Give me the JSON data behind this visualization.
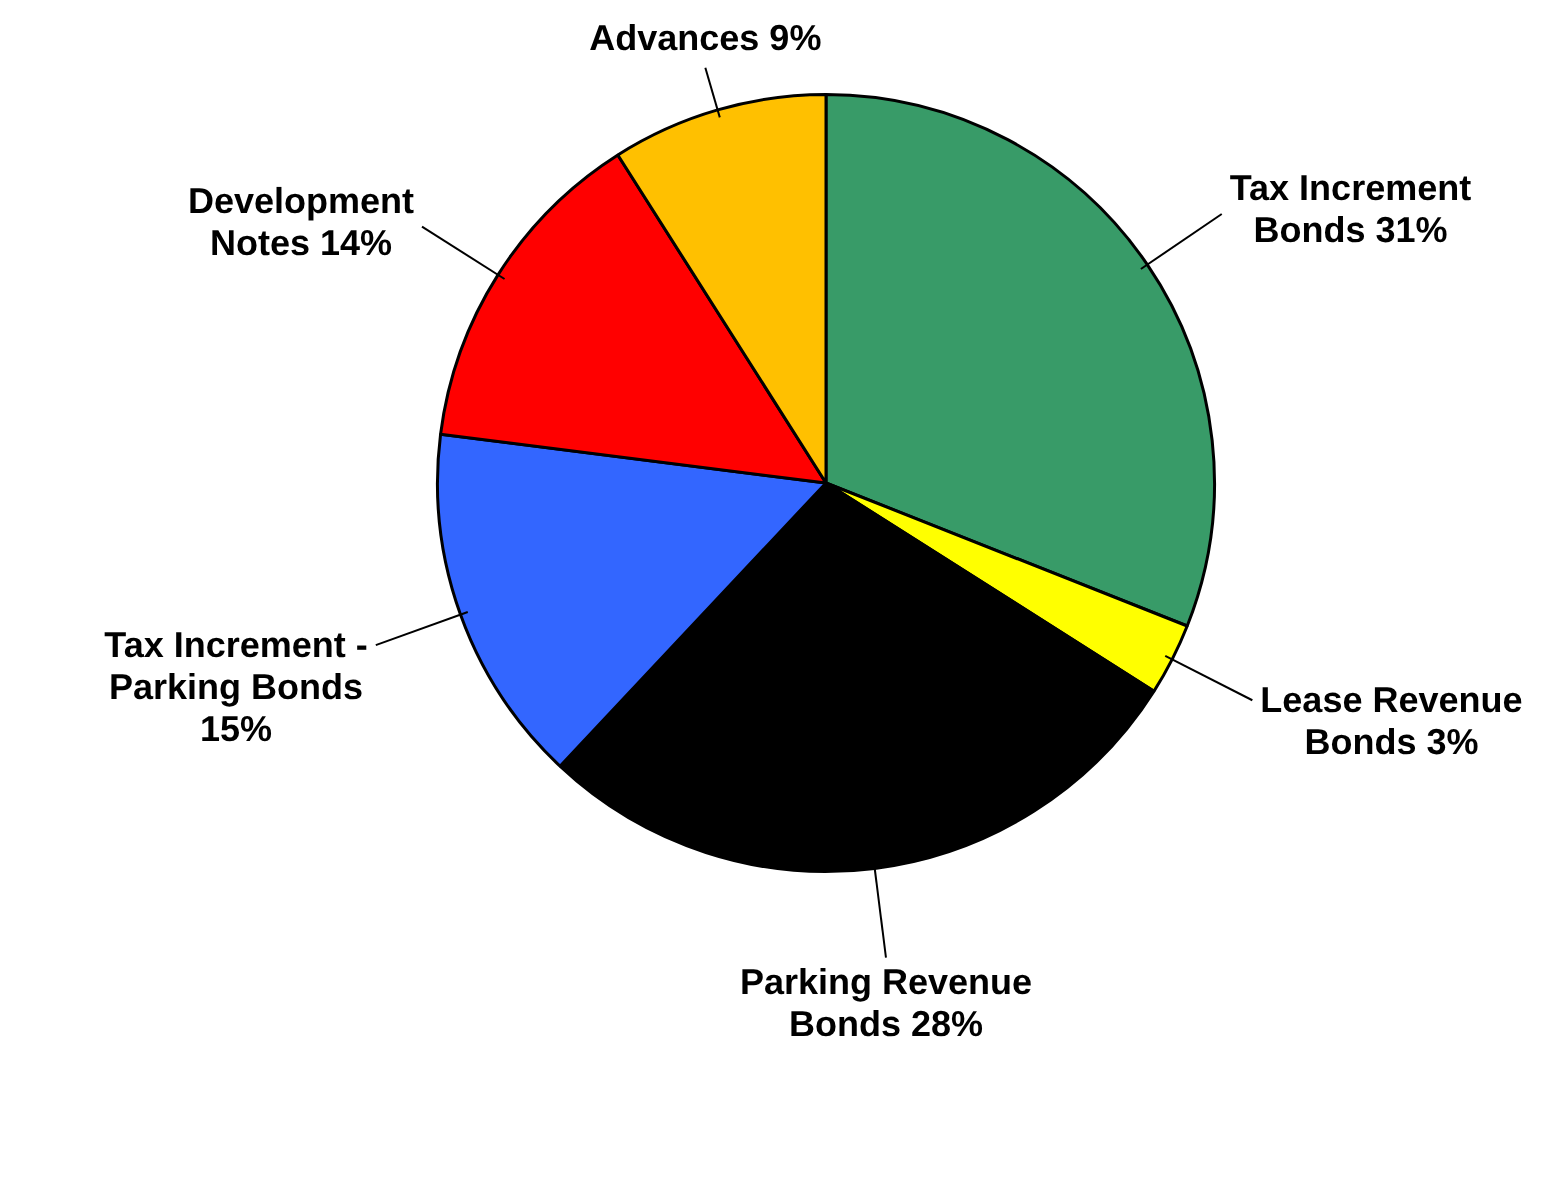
{
  "chart_data": {
    "type": "pie",
    "categories": [
      "Tax Increment Bonds",
      "Lease Revenue Bonds",
      "Parking Revenue Bonds",
      "Tax Increment - Parking Bonds",
      "Development Notes",
      "Advances"
    ],
    "values": [
      31,
      3,
      28,
      15,
      14,
      9
    ],
    "value_labels": [
      "31%",
      "3%",
      "28%",
      "15%",
      "14%",
      "9%"
    ],
    "colors": [
      "#389b68",
      "#ffff00",
      "#000000",
      "#3366ff",
      "#ff0000",
      "#ffc000"
    ],
    "legend": false
  }
}
